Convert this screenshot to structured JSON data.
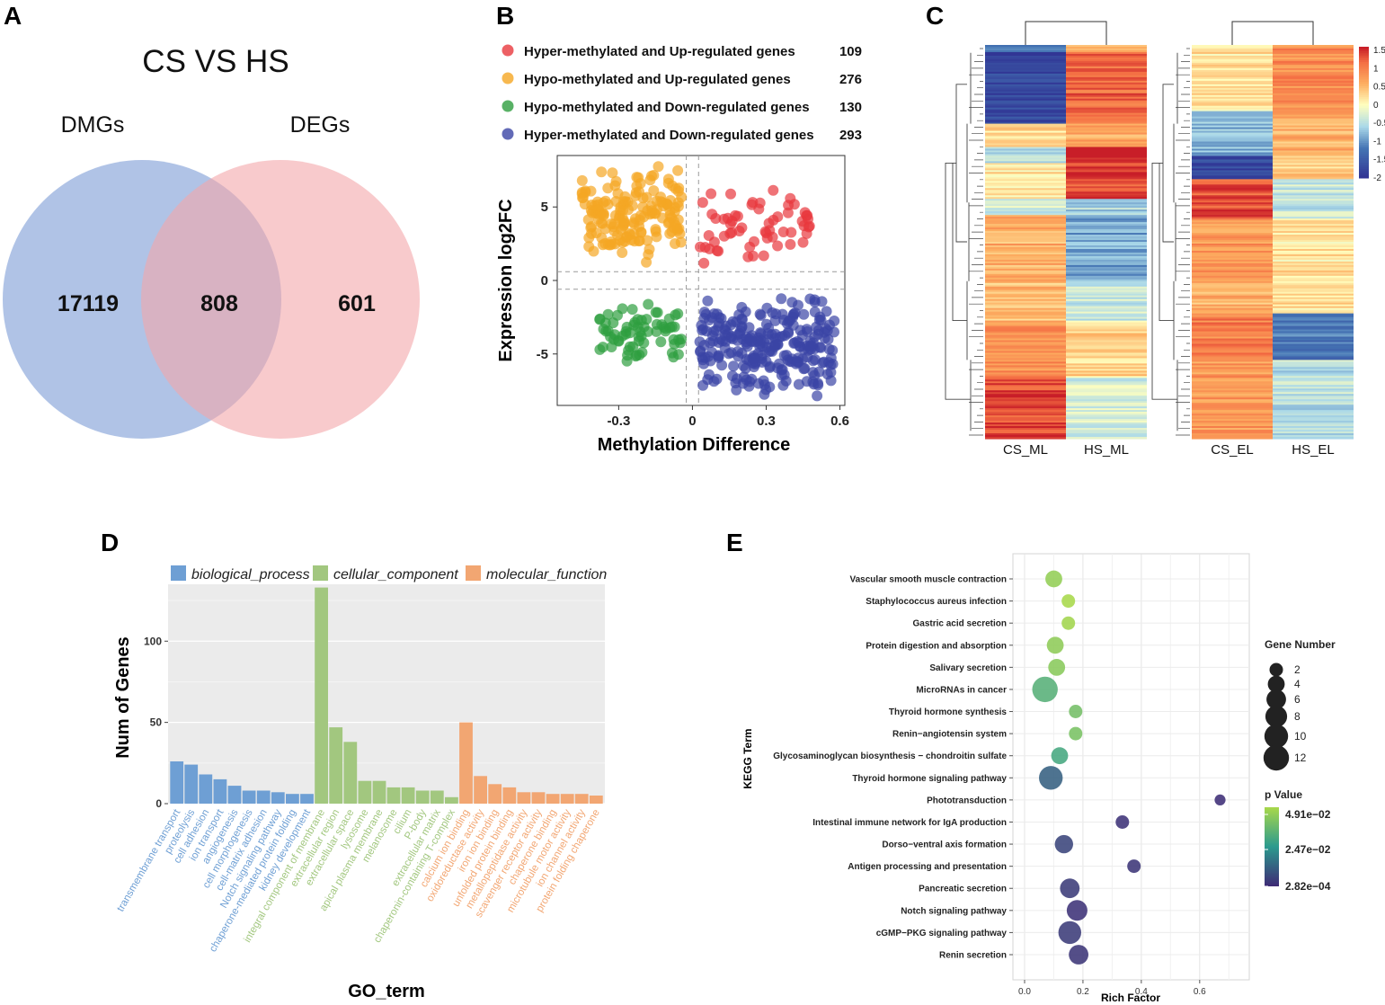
{
  "panels": {
    "a": "A",
    "b": "B",
    "c": "C",
    "d": "D",
    "e": "E"
  },
  "venn": {
    "title": "CS VS HS",
    "left_label": "DMGs",
    "right_label": "DEGs",
    "left_only": "17119",
    "overlap": "808",
    "right_only": "601",
    "colors": {
      "left": "#8EA9DB",
      "right": "#F4A6AA"
    }
  },
  "chart_data": [
    {
      "id": "B",
      "type": "scatter",
      "xlabel": "Methylation Difference",
      "ylabel": "Expression log2FC",
      "xlim": [
        -0.55,
        0.62
      ],
      "ylim": [
        -8.5,
        8.5
      ],
      "xticks": [
        -0.3,
        0,
        0.3,
        0.6
      ],
      "xtick_labels": [
        "-0.3",
        "0",
        "0.3",
        "0.6"
      ],
      "yticks": [
        5,
        0,
        -5
      ],
      "ytick_labels": [
        "5",
        "0",
        "-5"
      ],
      "threshold_lines": {
        "x": [
          -0.025,
          0.025
        ],
        "y": [
          0.6,
          -0.6
        ]
      },
      "legend": [
        {
          "label": "Hyper-methylated and Up-regulated genes",
          "count": "109",
          "color": "#E8383D"
        },
        {
          "label": "Hypo-methylated and Up-regulated genes",
          "count": "276",
          "color": "#F5A623"
        },
        {
          "label": "Hypo-methylated and Down-regulated genes",
          "count": "130",
          "color": "#2E9E3E"
        },
        {
          "label": "Hyper-methylated and Down-regulated genes",
          "count": "293",
          "color": "#3B45A5"
        }
      ],
      "series": [
        {
          "name": "Hyper-methylated and Up-regulated genes",
          "x_range": [
            0.03,
            0.5
          ],
          "y_range": [
            1.0,
            6.5
          ],
          "n": 60,
          "color": "#E8383D"
        },
        {
          "name": "Hypo-methylated and Up-regulated genes",
          "x_range": [
            -0.45,
            -0.04
          ],
          "y_range": [
            1.0,
            8.0
          ],
          "n": 170,
          "color": "#F5A623"
        },
        {
          "name": "Hypo-methylated and Down-regulated genes",
          "x_range": [
            -0.38,
            -0.04
          ],
          "y_range": [
            -6.0,
            -1.0
          ],
          "n": 70,
          "color": "#2E9E3E"
        },
        {
          "name": "Hyper-methylated and Down-regulated genes",
          "x_range": [
            0.03,
            0.58
          ],
          "y_range": [
            -8.0,
            -1.0
          ],
          "n": 260,
          "color": "#3B45A5"
        }
      ]
    },
    {
      "id": "C",
      "type": "heatmap",
      "left_columns": [
        "CS_ML",
        "HS_ML"
      ],
      "right_columns": [
        "CS_EL",
        "HS_EL"
      ],
      "color_scale": {
        "min": -2,
        "max": 1.6,
        "ticks": [
          "1.5",
          "1",
          "0.5",
          "0",
          "-0.5",
          "-1",
          "-1.5",
          "-2"
        ]
      },
      "left_blocks": [
        {
          "from": 0.0,
          "to": 0.02,
          "a": -1.2,
          "b": 0.6
        },
        {
          "from": 0.02,
          "to": 0.2,
          "a": -1.8,
          "b": 1.2
        },
        {
          "from": 0.2,
          "to": 0.26,
          "a": 0.3,
          "b": 0.6
        },
        {
          "from": 0.26,
          "to": 0.3,
          "a": -0.6,
          "b": 1.5
        },
        {
          "from": 0.3,
          "to": 0.39,
          "a": 0.2,
          "b": 1.4
        },
        {
          "from": 0.39,
          "to": 0.43,
          "a": -0.3,
          "b": -0.6
        },
        {
          "from": 0.43,
          "to": 0.6,
          "a": 0.6,
          "b": -0.9
        },
        {
          "from": 0.6,
          "to": 0.7,
          "a": 0.5,
          "b": -0.4
        },
        {
          "from": 0.7,
          "to": 0.84,
          "a": 0.9,
          "b": 0.3
        },
        {
          "from": 0.84,
          "to": 1.0,
          "a": 1.4,
          "b": -0.3
        }
      ],
      "right_blocks": [
        {
          "from": 0.0,
          "to": 0.17,
          "a": 0.2,
          "b": 0.9
        },
        {
          "from": 0.17,
          "to": 0.28,
          "a": -0.8,
          "b": 0.6
        },
        {
          "from": 0.28,
          "to": 0.34,
          "a": -1.8,
          "b": 0.4
        },
        {
          "from": 0.34,
          "to": 0.44,
          "a": 1.3,
          "b": -0.4
        },
        {
          "from": 0.44,
          "to": 0.6,
          "a": 0.8,
          "b": 0.2
        },
        {
          "from": 0.6,
          "to": 0.68,
          "a": 0.6,
          "b": 0.2
        },
        {
          "from": 0.68,
          "to": 0.8,
          "a": 1.0,
          "b": -1.2
        },
        {
          "from": 0.8,
          "to": 1.0,
          "a": 0.8,
          "b": -0.5
        }
      ]
    },
    {
      "id": "D",
      "type": "bar",
      "xlabel": "GO_term",
      "ylabel": "Num of Genes",
      "ylim": [
        0,
        135
      ],
      "yticks": [
        0,
        50,
        100
      ],
      "legend": [
        {
          "label": "biological_process",
          "color": "#6E9FD4"
        },
        {
          "label": "cellular_component",
          "color": "#A2C77F"
        },
        {
          "label": "molecular_function",
          "color": "#F2A672"
        }
      ],
      "categories": [
        "transmembrane transport",
        "proteolysis",
        "cell adhesion",
        "ion transport",
        "angiogenesis",
        "cell morphogenesis",
        "cell-matrix adhesion",
        "Notch signaling pathway",
        "chaperone-mediated protein folding",
        "kidney development",
        "integral component of membrane",
        "extracellular region",
        "extracellular space",
        "lysosome",
        "apical plasma membrane",
        "melanosome",
        "cilium",
        "P-body",
        "extracellular matrix",
        "chaperonin-containing T-complex",
        "calcium ion binding",
        "oxidoreductase activity",
        "iron ion binding",
        "unfolded protein binding",
        "metallopeptidase activity",
        "scavenger receptor activity",
        "chaperone binding",
        "microtubule motor activity",
        "ion channel activity",
        "protein folding chaperone"
      ],
      "groups": [
        "biological_process",
        "biological_process",
        "biological_process",
        "biological_process",
        "biological_process",
        "biological_process",
        "biological_process",
        "biological_process",
        "biological_process",
        "biological_process",
        "cellular_component",
        "cellular_component",
        "cellular_component",
        "cellular_component",
        "cellular_component",
        "cellular_component",
        "cellular_component",
        "cellular_component",
        "cellular_component",
        "cellular_component",
        "molecular_function",
        "molecular_function",
        "molecular_function",
        "molecular_function",
        "molecular_function",
        "molecular_function",
        "molecular_function",
        "molecular_function",
        "molecular_function",
        "molecular_function"
      ],
      "values": [
        26,
        24,
        18,
        15,
        11,
        8,
        8,
        7,
        6,
        6,
        133,
        47,
        38,
        14,
        14,
        10,
        10,
        8,
        8,
        4,
        50,
        17,
        12,
        10,
        7,
        7,
        6,
        6,
        6,
        5
      ]
    },
    {
      "id": "E",
      "type": "scatter",
      "xlabel": "Rich Factor",
      "ylabel": "KEGG Term",
      "xlim": [
        -0.04,
        0.77
      ],
      "xticks": [
        0.0,
        0.2,
        0.4,
        0.6
      ],
      "xtick_labels": [
        "0.0",
        "0.2",
        "0.4",
        "0.6"
      ],
      "terms": [
        "Vascular smooth muscle contraction",
        "Staphylococcus aureus infection",
        "Gastric acid secretion",
        "Protein digestion and absorption",
        "Salivary secretion",
        "MicroRNAs in cancer",
        "Thyroid hormone synthesis",
        "Renin−angiotensin system",
        "Glycosaminoglycan biosynthesis − chondroitin sulfate",
        "Thyroid hormone signaling pathway",
        "Phototransduction",
        "Intestinal immune network for IgA production",
        "Dorso−ventral axis formation",
        "Antigen processing and presentation",
        "Pancreatic secretion",
        "Notch signaling pathway",
        "cGMP−PKG signaling pathway",
        "Renin secretion"
      ],
      "rich_factor": [
        0.1,
        0.15,
        0.15,
        0.105,
        0.11,
        0.07,
        0.175,
        0.175,
        0.12,
        0.09,
        0.67,
        0.335,
        0.135,
        0.375,
        0.155,
        0.18,
        0.155,
        0.185
      ],
      "gene_number": [
        4,
        2,
        2,
        4,
        4,
        12,
        2,
        2,
        4,
        10,
        1,
        2,
        5,
        2,
        6,
        7,
        9,
        6
      ],
      "color_value": [
        0.045,
        0.049,
        0.048,
        0.044,
        0.043,
        0.033,
        0.039,
        0.04,
        0.03,
        0.012,
        0.001,
        0.002,
        0.006,
        0.003,
        0.004,
        0.002,
        0.004,
        0.003
      ],
      "size_legend": {
        "title": "Gene Number",
        "values": [
          "2",
          "4",
          "6",
          "8",
          "10",
          "12"
        ]
      },
      "color_legend": {
        "title": "p Value",
        "labels": [
          "4.91e−02",
          "2.47e−02",
          "2.82e−04"
        ],
        "low": "#3E2A75",
        "mid": "#2B9A8E",
        "high": "#A8D84A"
      }
    }
  ]
}
